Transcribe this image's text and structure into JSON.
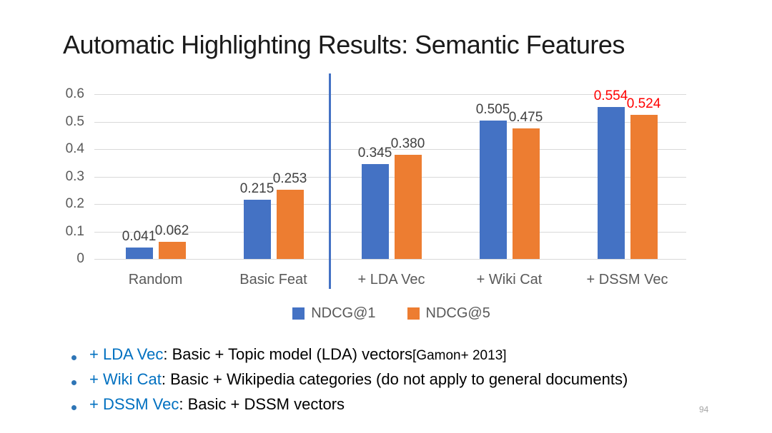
{
  "slide": {
    "title": "Automatic Highlighting Results: Semantic Features",
    "page_number": "94"
  },
  "chart_data": {
    "type": "bar",
    "title": "",
    "categories": [
      "Random",
      "Basic Feat",
      "+ LDA Vec",
      "+ Wiki Cat",
      "+ DSSM Vec"
    ],
    "series": [
      {
        "name": "NDCG@1",
        "color": "#4472c4",
        "values": [
          0.041,
          0.215,
          0.345,
          0.505,
          0.554
        ]
      },
      {
        "name": "NDCG@5",
        "color": "#ed7d31",
        "values": [
          0.062,
          0.253,
          0.38,
          0.475,
          0.524
        ]
      }
    ],
    "ylim": [
      0,
      0.6
    ],
    "ytick_step": 0.1,
    "yticks": [
      "0",
      "0.1",
      "0.2",
      "0.3",
      "0.4",
      "0.5",
      "0.6"
    ],
    "grid": true,
    "legend_position": "bottom",
    "data_label_decimals": 3,
    "data_label_color": "#404040",
    "highlight_category_index": 4,
    "highlight_label_color": "#ff0000",
    "separator_after_category": 2,
    "separator_color": "#4472c4",
    "gridline_color": "#d9d9d9"
  },
  "bullets": [
    {
      "term": "+ LDA Vec",
      "desc": ": Basic + Topic model (LDA) vectors ",
      "cite": "[Gamon+ 2013]"
    },
    {
      "term": "+ Wiki Cat",
      "desc": ": Basic + Wikipedia categories (do not apply to general documents)",
      "cite": ""
    },
    {
      "term": "+ DSSM Vec",
      "desc": ": Basic + DSSM vectors",
      "cite": ""
    }
  ]
}
